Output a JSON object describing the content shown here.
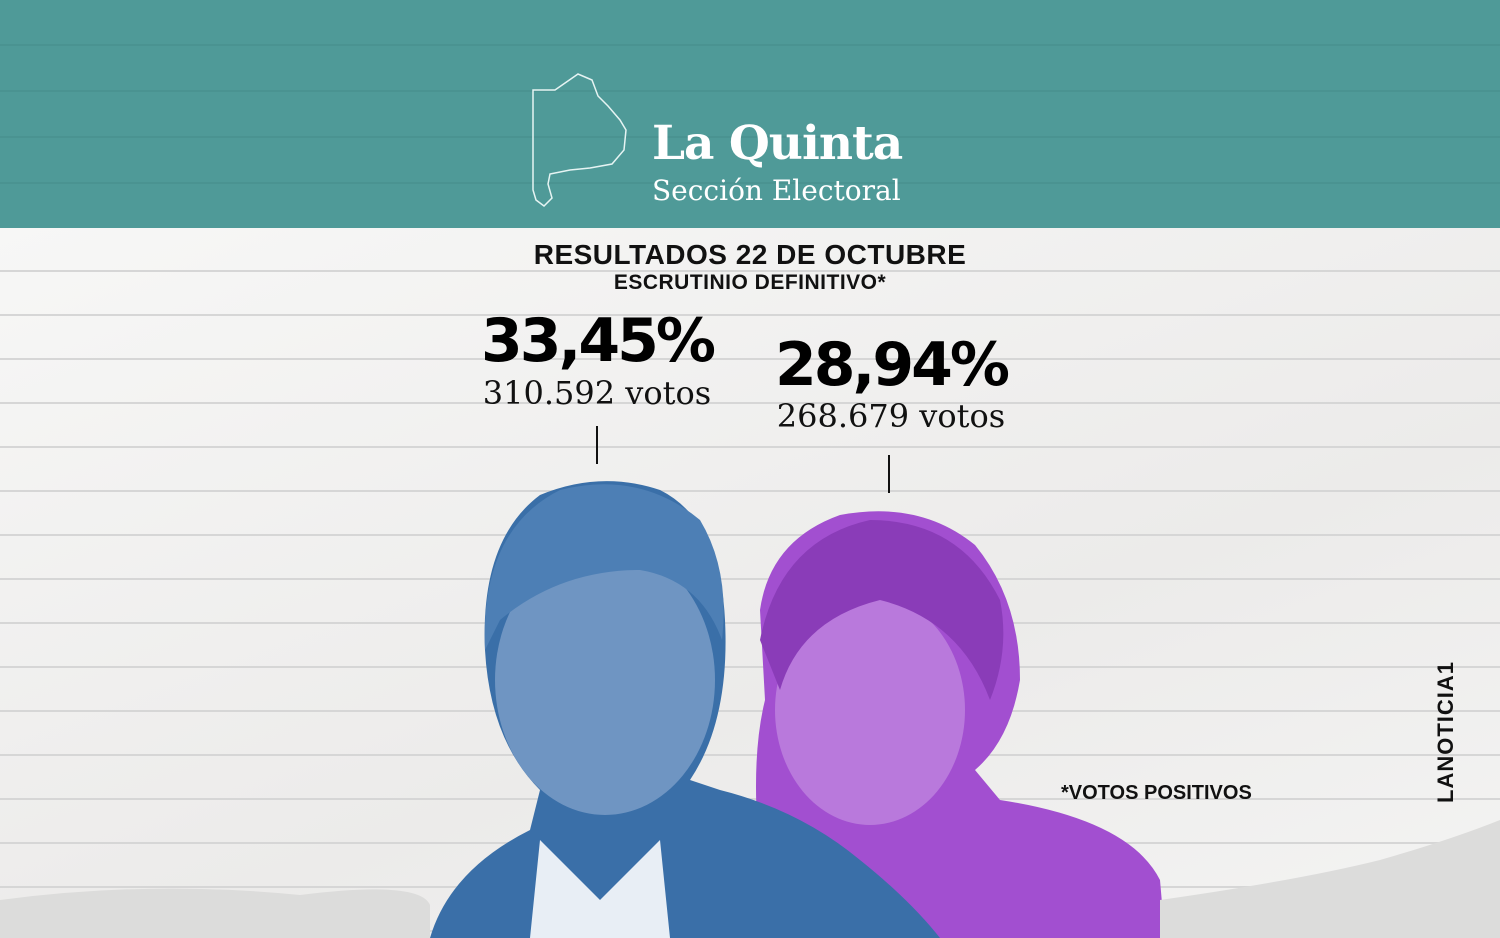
{
  "header": {
    "title": "La Quinta",
    "subtitle": "Sección Electoral",
    "background_color": "#4f9a98",
    "map_icon": "buenos-aires-province-outline"
  },
  "results": {
    "title": "RESULTADOS 22 DE OCTUBRE",
    "subtitle": "ESCRUTINIO DEFINITIVO*"
  },
  "candidates": [
    {
      "percent": "33,45%",
      "votes": "310.592 votos",
      "photo_tint": "#3a6fa8"
    },
    {
      "percent": "28,94%",
      "votes": "268.679 votos",
      "photo_tint": "#a24fd0"
    }
  ],
  "footnote": "*VOTOS POSITIVOS",
  "brand_logo": "LANOTICIA1"
}
